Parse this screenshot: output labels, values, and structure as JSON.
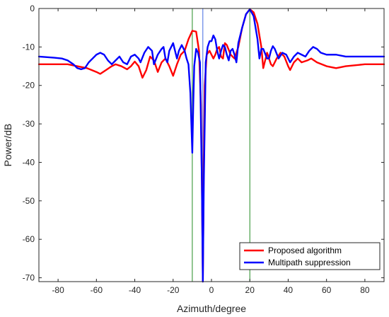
{
  "chart_data": {
    "type": "line",
    "title": "",
    "xlabel": "Azimuth/degree",
    "ylabel": "Power/dB",
    "xlim": [
      -90,
      90
    ],
    "ylim": [
      -71,
      0
    ],
    "xticks": [
      -80,
      -60,
      -40,
      -20,
      0,
      20,
      40,
      60,
      80
    ],
    "xtick_labels": [
      "-80",
      "-60",
      "-40",
      "-20",
      "0",
      "20",
      "40",
      "60",
      "80"
    ],
    "yticks": [
      0,
      -10,
      -20,
      -30,
      -40,
      -50,
      -60,
      -70
    ],
    "ytick_labels": [
      "0",
      "-10",
      "-20",
      "-30",
      "-40",
      "-50",
      "-60",
      "-70"
    ],
    "grid": false,
    "legend_position": "bottom-right",
    "series": [
      {
        "name": "Proposed algorithm",
        "color": "#ff0000",
        "points": [
          [
            -90,
            -14.5
          ],
          [
            -75,
            -14.5
          ],
          [
            -70,
            -15
          ],
          [
            -65,
            -15.5
          ],
          [
            -60,
            -16.5
          ],
          [
            -58,
            -17
          ],
          [
            -55,
            -16
          ],
          [
            -52,
            -15
          ],
          [
            -50,
            -14.5
          ],
          [
            -47,
            -15
          ],
          [
            -44,
            -15.8
          ],
          [
            -42,
            -15
          ],
          [
            -40,
            -13.8
          ],
          [
            -38,
            -15
          ],
          [
            -36,
            -18
          ],
          [
            -34,
            -16
          ],
          [
            -32,
            -12.5
          ],
          [
            -30,
            -13.5
          ],
          [
            -28,
            -16.5
          ],
          [
            -26,
            -14
          ],
          [
            -24,
            -13
          ],
          [
            -22,
            -15
          ],
          [
            -20,
            -17.5
          ],
          [
            -18,
            -14.5
          ],
          [
            -16,
            -12
          ],
          [
            -14,
            -11
          ],
          [
            -12,
            -8
          ],
          [
            -10,
            -5.8
          ],
          [
            -8,
            -6
          ],
          [
            -6.5,
            -11
          ],
          [
            -5.5,
            -25
          ],
          [
            -5,
            -45
          ],
          [
            -4.5,
            -71
          ],
          [
            -4,
            -40
          ],
          [
            -3.5,
            -20
          ],
          [
            -2.5,
            -12
          ],
          [
            -1,
            -11
          ],
          [
            0,
            -12
          ],
          [
            1,
            -13
          ],
          [
            2,
            -12
          ],
          [
            3,
            -10.5
          ],
          [
            4,
            -10
          ],
          [
            5,
            -12.5
          ],
          [
            6,
            -13
          ],
          [
            7,
            -9
          ],
          [
            8,
            -9.5
          ],
          [
            10,
            -12
          ],
          [
            12,
            -13
          ],
          [
            14,
            -10
          ],
          [
            16,
            -5
          ],
          [
            18,
            -1.5
          ],
          [
            20,
            -0.2
          ],
          [
            22,
            -1
          ],
          [
            24,
            -4
          ],
          [
            26,
            -10
          ],
          [
            27,
            -15.5
          ],
          [
            28,
            -13.5
          ],
          [
            29,
            -11.5
          ],
          [
            31,
            -14.5
          ],
          [
            32,
            -15
          ],
          [
            34,
            -13
          ],
          [
            36,
            -11.5
          ],
          [
            38,
            -12.5
          ],
          [
            40,
            -15
          ],
          [
            41,
            -16
          ],
          [
            43,
            -14
          ],
          [
            45,
            -13
          ],
          [
            47,
            -14
          ],
          [
            50,
            -13.5
          ],
          [
            52,
            -13
          ],
          [
            55,
            -14
          ],
          [
            60,
            -15
          ],
          [
            65,
            -15.5
          ],
          [
            70,
            -15
          ],
          [
            80,
            -14.5
          ],
          [
            90,
            -14.5
          ]
        ]
      },
      {
        "name": "Multipath suppression",
        "color": "#0000ff",
        "points": [
          [
            -90,
            -12.5
          ],
          [
            -82,
            -12.8
          ],
          [
            -78,
            -13
          ],
          [
            -75,
            -13.5
          ],
          [
            -72,
            -14.5
          ],
          [
            -70,
            -15.5
          ],
          [
            -68,
            -15.8
          ],
          [
            -66,
            -15.5
          ],
          [
            -64,
            -14
          ],
          [
            -62,
            -13
          ],
          [
            -60,
            -12
          ],
          [
            -58,
            -11.5
          ],
          [
            -56,
            -12
          ],
          [
            -54,
            -13.5
          ],
          [
            -52,
            -14.5
          ],
          [
            -50,
            -13.5
          ],
          [
            -48,
            -12.5
          ],
          [
            -46,
            -14
          ],
          [
            -44,
            -14.5
          ],
          [
            -42,
            -12.5
          ],
          [
            -40,
            -12
          ],
          [
            -38,
            -13
          ],
          [
            -37,
            -14
          ],
          [
            -35,
            -11.5
          ],
          [
            -33,
            -10
          ],
          [
            -31,
            -11
          ],
          [
            -30,
            -14.5
          ],
          [
            -28,
            -12
          ],
          [
            -26,
            -10.5
          ],
          [
            -25,
            -10
          ],
          [
            -24,
            -13
          ],
          [
            -23,
            -14
          ],
          [
            -22,
            -11
          ],
          [
            -20,
            -9
          ],
          [
            -19,
            -11
          ],
          [
            -18,
            -13
          ],
          [
            -17,
            -11
          ],
          [
            -15.5,
            -9.5
          ],
          [
            -14,
            -11
          ],
          [
            -13,
            -13
          ],
          [
            -12,
            -14.5
          ],
          [
            -11,
            -22
          ],
          [
            -10,
            -37.5
          ],
          [
            -9.5,
            -25
          ],
          [
            -9,
            -15
          ],
          [
            -8,
            -10.5
          ],
          [
            -7,
            -11.5
          ],
          [
            -6,
            -14
          ],
          [
            -5,
            -45
          ],
          [
            -4.5,
            -71
          ],
          [
            -4,
            -45
          ],
          [
            -3,
            -14
          ],
          [
            -2,
            -10
          ],
          [
            -1,
            -8.5
          ],
          [
            0,
            -8.5
          ],
          [
            1,
            -7
          ],
          [
            2,
            -8
          ],
          [
            3,
            -11
          ],
          [
            4,
            -13
          ],
          [
            5,
            -11
          ],
          [
            6,
            -9.5
          ],
          [
            7,
            -10
          ],
          [
            8,
            -12
          ],
          [
            9,
            -13.5
          ],
          [
            10,
            -11
          ],
          [
            11,
            -10.5
          ],
          [
            12,
            -12
          ],
          [
            13,
            -14
          ],
          [
            14,
            -9
          ],
          [
            16,
            -5
          ],
          [
            18,
            -1.5
          ],
          [
            20,
            -0.2
          ],
          [
            22,
            -2
          ],
          [
            24,
            -8
          ],
          [
            25,
            -13
          ],
          [
            26,
            -10.5
          ],
          [
            27,
            -10.5
          ],
          [
            29,
            -13
          ],
          [
            30,
            -13
          ],
          [
            31,
            -11
          ],
          [
            32,
            -9.8
          ],
          [
            33,
            -10.5
          ],
          [
            35,
            -13
          ],
          [
            37,
            -11.5
          ],
          [
            39,
            -12
          ],
          [
            41,
            -14
          ],
          [
            43,
            -12.5
          ],
          [
            45,
            -11.5
          ],
          [
            47,
            -12
          ],
          [
            49,
            -12.5
          ],
          [
            51,
            -11
          ],
          [
            53,
            -10
          ],
          [
            55,
            -10.5
          ],
          [
            57,
            -11.5
          ],
          [
            60,
            -12
          ],
          [
            65,
            -12
          ],
          [
            70,
            -12.5
          ],
          [
            75,
            -12.5
          ],
          [
            90,
            -12.5
          ]
        ]
      }
    ],
    "vertical_lines": [
      {
        "x": -10,
        "color": "#228b22"
      },
      {
        "x": -4.5,
        "color": "#4169e1"
      },
      {
        "x": 20,
        "color": "#228b22"
      }
    ]
  }
}
